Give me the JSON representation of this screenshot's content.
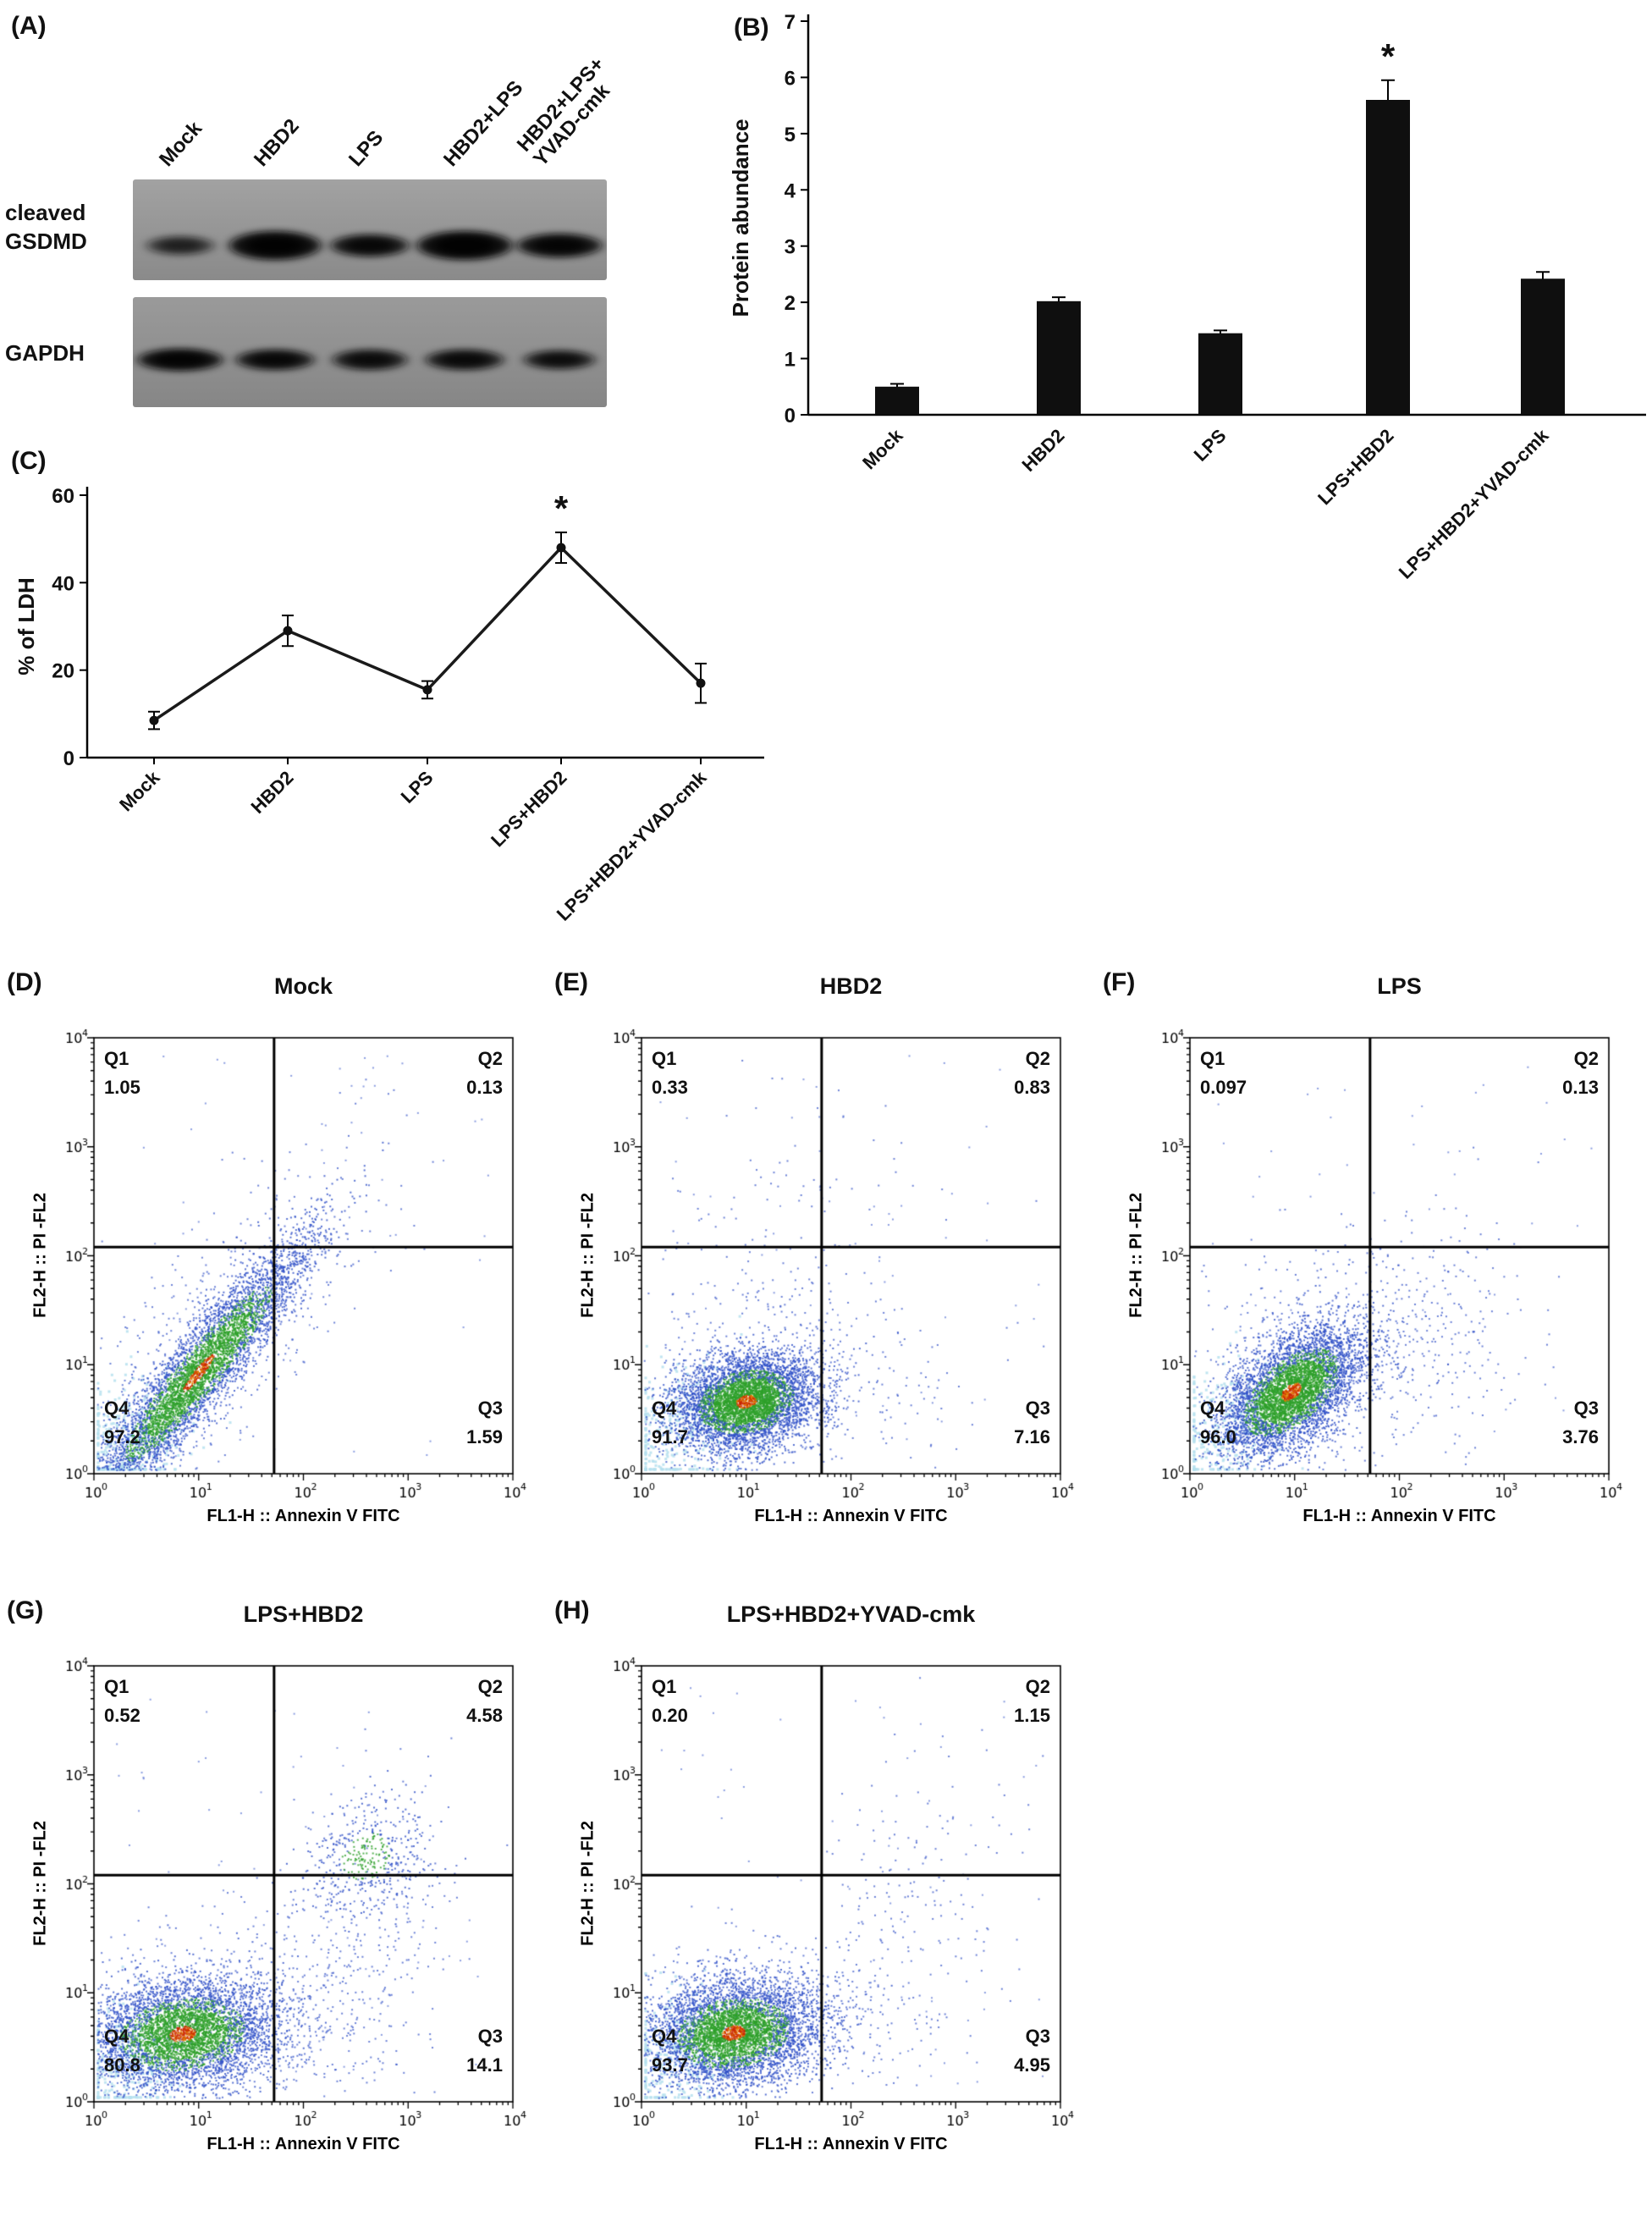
{
  "colors": {
    "bar": "#0f0f0f",
    "line": "#1a1a1a",
    "scatter_blue": "#3050c8",
    "scatter_green": "#2ea02a",
    "scatter_core": "#cc2500",
    "scatter_orange": "#e07b00",
    "scatter_light": "#b5e0ef"
  },
  "flow_ui": {
    "q1": "Q1",
    "q2": "Q2",
    "q3": "Q3",
    "q4": "Q4",
    "xlabel": "FL1-H :: Annexin V FITC",
    "ylabel": "FL2-H :: PI -FL2"
  },
  "panels": {
    "A": {
      "label": "(A)",
      "lane_labels": [
        "Mock",
        "HBD2",
        "LPS",
        "HBD2+LPS",
        "HBD2+LPS+\nYVAD-cmk"
      ],
      "row_label_line1": "cleaved",
      "row_label_line2": "GSDMD",
      "row_label_gapdh": "GAPDH",
      "blots": [
        {
          "row": "cleaved GSDMD",
          "bg_top": "#a2a2a2",
          "bg_bottom": "#8a8a8a",
          "band_y": 78,
          "bands": [
            {
              "lane": "Mock",
              "intensity": 0.6,
              "rx": 40,
              "ry": 11
            },
            {
              "lane": "HBD2",
              "intensity": 0.96,
              "rx": 54,
              "ry": 17
            },
            {
              "lane": "LPS",
              "intensity": 0.85,
              "rx": 46,
              "ry": 13
            },
            {
              "lane": "HBD2+LPS",
              "intensity": 0.97,
              "rx": 56,
              "ry": 17
            },
            {
              "lane": "HBD2+LPS+YVAD-cmk",
              "intensity": 0.9,
              "rx": 50,
              "ry": 14
            }
          ]
        },
        {
          "row": "GAPDH",
          "bg_top": "#9a9a9a",
          "bg_bottom": "#868686",
          "band_y": 74,
          "bands": [
            {
              "lane": "Mock",
              "intensity": 0.92,
              "rx": 50,
              "ry": 13
            },
            {
              "lane": "HBD2",
              "intensity": 0.85,
              "rx": 46,
              "ry": 12
            },
            {
              "lane": "LPS",
              "intensity": 0.8,
              "rx": 44,
              "ry": 12
            },
            {
              "lane": "HBD2+LPS",
              "intensity": 0.82,
              "rx": 46,
              "ry": 12
            },
            {
              "lane": "HBD2+LPS+YVAD-cmk",
              "intensity": 0.78,
              "rx": 42,
              "ry": 11
            }
          ]
        }
      ]
    },
    "B": {
      "label": "(B)"
    },
    "C": {
      "label": "(C)"
    },
    "D": {
      "label": "(D)",
      "title": "Mock"
    },
    "E": {
      "label": "(E)",
      "title": "HBD2"
    },
    "F": {
      "label": "(F)",
      "title": "LPS"
    },
    "G": {
      "label": "(G)",
      "title": "LPS+HBD2"
    },
    "H": {
      "label": "(H)",
      "title": "LPS+HBD2+YVAD-cmk"
    }
  },
  "chart_data": [
    {
      "id": "B",
      "type": "bar",
      "title": "",
      "ylabel": "Protein abundance",
      "xlabel": "",
      "categories": [
        "Mock",
        "HBD2",
        "LPS",
        "LPS+HBD2",
        "LPS+HBD2+YVAD-cmk"
      ],
      "values": [
        0.5,
        2.02,
        1.45,
        5.6,
        2.42
      ],
      "errors": [
        0.05,
        0.07,
        0.05,
        0.35,
        0.12
      ],
      "ylim": [
        0,
        7
      ],
      "yticks": [
        0,
        1,
        2,
        3,
        4,
        5,
        6,
        7
      ],
      "annotation": "*",
      "star_index": 3,
      "legend": "none",
      "grid": false
    },
    {
      "id": "C",
      "type": "line",
      "title": "",
      "ylabel": "% of LDH",
      "xlabel": "",
      "categories": [
        "Mock",
        "HBD2",
        "LPS",
        "LPS+HBD2",
        "LPS+HBD2+YVAD-cmk"
      ],
      "values": [
        8.5,
        29,
        15.5,
        48,
        17
      ],
      "errors": [
        2,
        3.5,
        2,
        3.5,
        4.5
      ],
      "ylim": [
        0,
        60
      ],
      "yticks": [
        0,
        20,
        40,
        60
      ],
      "annotation": "*",
      "star_index": 3,
      "legend": "none",
      "grid": false
    },
    {
      "id": "D",
      "type": "scatter",
      "title": "Mock",
      "xlabel": "FL1-H :: Annexin V FITC",
      "ylabel": "FL2-H :: PI -FL2",
      "xlim_log": [
        0,
        4
      ],
      "ylim_log": [
        0,
        4
      ],
      "ticks": [
        "10^0",
        "10^1",
        "10^2",
        "10^3",
        "10^4"
      ],
      "gate_x_log": 1.72,
      "gate_y_log": 2.08,
      "quadrants": {
        "Q1": "1.05",
        "Q2": "0.13",
        "Q3": "1.59",
        "Q4": "97.2"
      },
      "seed": 7,
      "bg_n": 70,
      "clusters": [
        {
          "palette": "light",
          "cx": 0.32,
          "cy": 0.3,
          "sx": 0.3,
          "sy": 0.33,
          "rho": 0.3,
          "n": 320
        },
        {
          "palette": "blue",
          "cx": 1.0,
          "cy": 1.05,
          "sx": 0.75,
          "sy": 0.85,
          "rho": 0.75,
          "n": 700
        },
        {
          "palette": "density",
          "cx": 1.0,
          "cy": 0.92,
          "sx": 0.52,
          "sy": 0.6,
          "rho": 0.93,
          "n": 5200
        }
      ]
    },
    {
      "id": "E",
      "type": "scatter",
      "title": "HBD2",
      "xlabel": "FL1-H :: Annexin V FITC",
      "ylabel": "FL2-H :: PI -FL2",
      "xlim_log": [
        0,
        4
      ],
      "ylim_log": [
        0,
        4
      ],
      "ticks": [
        "10^0",
        "10^1",
        "10^2",
        "10^3",
        "10^4"
      ],
      "gate_x_log": 1.72,
      "gate_y_log": 2.08,
      "quadrants": {
        "Q1": "0.33",
        "Q2": "0.83",
        "Q3": "7.16",
        "Q4": "91.7"
      },
      "seed": 11,
      "bg_n": 60,
      "clusters": [
        {
          "palette": "light",
          "cx": 0.3,
          "cy": 0.4,
          "sx": 0.28,
          "sy": 0.3,
          "rho": 0.2,
          "n": 300
        },
        {
          "palette": "blue",
          "cx": 1.25,
          "cy": 0.8,
          "sx": 0.75,
          "sy": 0.45,
          "rho": 0.1,
          "n": 500
        },
        {
          "palette": "blue",
          "cx": 1.4,
          "cy": 1.9,
          "sx": 0.75,
          "sy": 0.7,
          "rho": 0.1,
          "n": 160
        },
        {
          "palette": "density",
          "cx": 1.0,
          "cy": 0.66,
          "sx": 0.34,
          "sy": 0.22,
          "rho": 0.2,
          "n": 5200
        }
      ]
    },
    {
      "id": "F",
      "type": "scatter",
      "title": "LPS",
      "xlabel": "FL1-H :: Annexin V FITC",
      "ylabel": "FL2-H :: PI -FL2",
      "xlim_log": [
        0,
        4
      ],
      "ylim_log": [
        0,
        4
      ],
      "ticks": [
        "10^0",
        "10^1",
        "10^2",
        "10^3",
        "10^4"
      ],
      "gate_x_log": 1.72,
      "gate_y_log": 2.08,
      "quadrants": {
        "Q1": "0.097",
        "Q2": "0.13",
        "Q3": "3.76",
        "Q4": "96.0"
      },
      "seed": 13,
      "bg_n": 60,
      "clusters": [
        {
          "palette": "light",
          "cx": 0.3,
          "cy": 0.4,
          "sx": 0.3,
          "sy": 0.3,
          "rho": 0.2,
          "n": 280
        },
        {
          "palette": "blue",
          "cx": 1.3,
          "cy": 1.0,
          "sx": 0.8,
          "sy": 0.6,
          "rho": 0.3,
          "n": 600
        },
        {
          "palette": "blue",
          "cx": 2.3,
          "cy": 1.2,
          "sx": 0.6,
          "sy": 0.7,
          "rho": 0.2,
          "n": 140
        },
        {
          "palette": "density",
          "cx": 0.97,
          "cy": 0.75,
          "sx": 0.34,
          "sy": 0.3,
          "rho": 0.55,
          "n": 5200
        }
      ]
    },
    {
      "id": "G",
      "type": "scatter",
      "title": "LPS+HBD2",
      "xlabel": "FL1-H :: Annexin V FITC",
      "ylabel": "FL2-H :: PI -FL2",
      "xlim_log": [
        0,
        4
      ],
      "ylim_log": [
        0,
        4
      ],
      "ticks": [
        "10^0",
        "10^1",
        "10^2",
        "10^3",
        "10^4"
      ],
      "gate_x_log": 1.72,
      "gate_y_log": 2.08,
      "quadrants": {
        "Q1": "0.52",
        "Q2": "4.58",
        "Q3": "14.1",
        "Q4": "80.8"
      },
      "seed": 17,
      "bg_n": 80,
      "clusters": [
        {
          "palette": "light",
          "cx": 0.28,
          "cy": 0.35,
          "sx": 0.28,
          "sy": 0.3,
          "rho": 0.2,
          "n": 280
        },
        {
          "palette": "blue",
          "cx": 1.2,
          "cy": 0.75,
          "sx": 0.8,
          "sy": 0.45,
          "rho": 0.1,
          "n": 700
        },
        {
          "palette": "blue",
          "cx": 2.5,
          "cy": 1.4,
          "sx": 0.45,
          "sy": 0.8,
          "rho": 0.2,
          "n": 300
        },
        {
          "palette": "greenblue",
          "cx": 2.6,
          "cy": 2.25,
          "sx": 0.3,
          "sy": 0.28,
          "rho": 0.2,
          "n": 420
        },
        {
          "palette": "density",
          "cx": 0.85,
          "cy": 0.62,
          "sx": 0.45,
          "sy": 0.25,
          "rho": 0.15,
          "n": 4800
        }
      ]
    },
    {
      "id": "H",
      "type": "scatter",
      "title": "LPS+HBD2+YVAD-cmk",
      "xlabel": "FL1-H :: Annexin V FITC",
      "ylabel": "FL2-H :: PI -FL2",
      "xlim_log": [
        0,
        4
      ],
      "ylim_log": [
        0,
        4
      ],
      "ticks": [
        "10^0",
        "10^1",
        "10^2",
        "10^3",
        "10^4"
      ],
      "gate_x_log": 1.72,
      "gate_y_log": 2.08,
      "quadrants": {
        "Q1": "0.20",
        "Q2": "1.15",
        "Q3": "4.95",
        "Q4": "93.7"
      },
      "seed": 23,
      "bg_n": 70,
      "clusters": [
        {
          "palette": "light",
          "cx": 0.3,
          "cy": 0.38,
          "sx": 0.28,
          "sy": 0.3,
          "rho": 0.2,
          "n": 280
        },
        {
          "palette": "blue",
          "cx": 1.2,
          "cy": 0.75,
          "sx": 0.7,
          "sy": 0.4,
          "rho": 0.1,
          "n": 550
        },
        {
          "palette": "blue",
          "cx": 2.6,
          "cy": 1.8,
          "sx": 0.45,
          "sy": 0.8,
          "rho": 0.3,
          "n": 180
        },
        {
          "palette": "density",
          "cx": 0.88,
          "cy": 0.63,
          "sx": 0.4,
          "sy": 0.24,
          "rho": 0.15,
          "n": 5000
        }
      ]
    }
  ]
}
